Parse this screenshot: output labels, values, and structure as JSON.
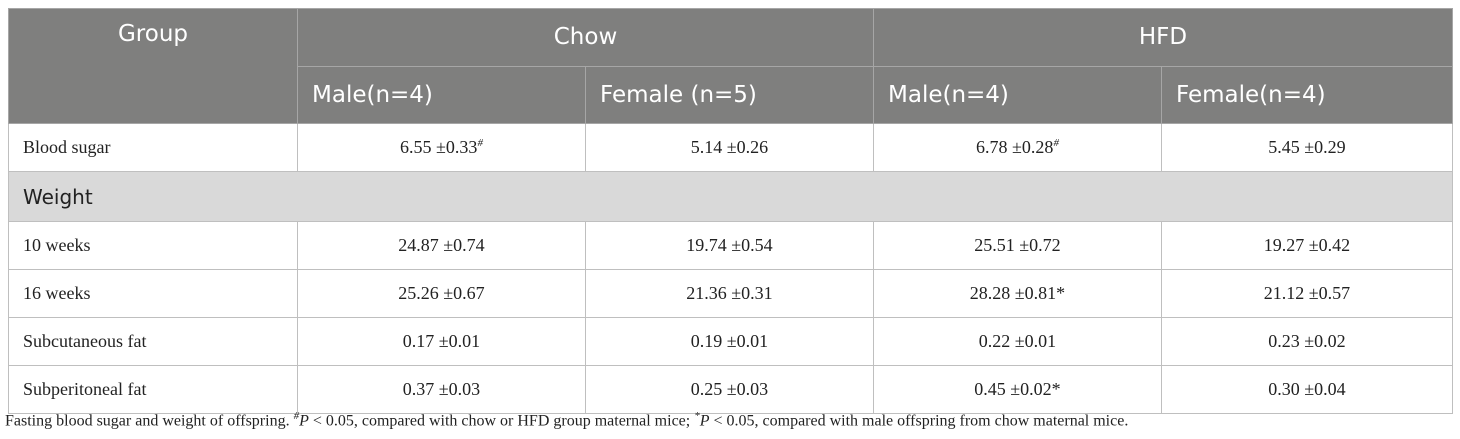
{
  "table": {
    "header": {
      "group": "Group",
      "chow": "Chow",
      "hfd": "HFD",
      "subheaders": [
        "Male(n=4)",
        "Female (n=5)",
        "Male(n=4)",
        "Female(n=4)"
      ]
    },
    "rows": [
      {
        "label": "Blood sugar",
        "cells": [
          {
            "text": "6.55 ±0.33",
            "sup": "#"
          },
          {
            "text": "5.14 ±0.26"
          },
          {
            "text": "6.78 ±0.28",
            "sup": "#"
          },
          {
            "text": "5.45 ±0.29"
          }
        ]
      },
      {
        "section": "Weight"
      },
      {
        "label": "10 weeks",
        "cells": [
          {
            "text": "24.87 ±0.74"
          },
          {
            "text": "19.74 ±0.54"
          },
          {
            "text": "25.51 ±0.72"
          },
          {
            "text": "19.27 ±0.42"
          }
        ]
      },
      {
        "label": "16 weeks",
        "cells": [
          {
            "text": "25.26 ±0.67"
          },
          {
            "text": "21.36 ±0.31"
          },
          {
            "text": "28.28 ±0.81*"
          },
          {
            "text": "21.12 ±0.57"
          }
        ]
      },
      {
        "label": "Subcutaneous fat",
        "cells": [
          {
            "text": "0.17 ±0.01"
          },
          {
            "text": "0.19 ±0.01"
          },
          {
            "text": "0.22 ±0.01"
          },
          {
            "text": "0.23 ±0.02"
          }
        ]
      },
      {
        "label": "Subperitoneal fat",
        "cells": [
          {
            "text": "0.37 ±0.03"
          },
          {
            "text": "0.25 ±0.03"
          },
          {
            "text": "0.45 ±0.02*"
          },
          {
            "text": "0.30 ±0.04"
          }
        ]
      }
    ]
  },
  "caption": [
    "Fasting blood sugar and weight of offspring. ",
    "#",
    "P",
    " < 0.05, compared with chow or HFD group maternal mice; ",
    "*",
    "P",
    " < 0.05, compared with male offspring from chow maternal mice."
  ]
}
